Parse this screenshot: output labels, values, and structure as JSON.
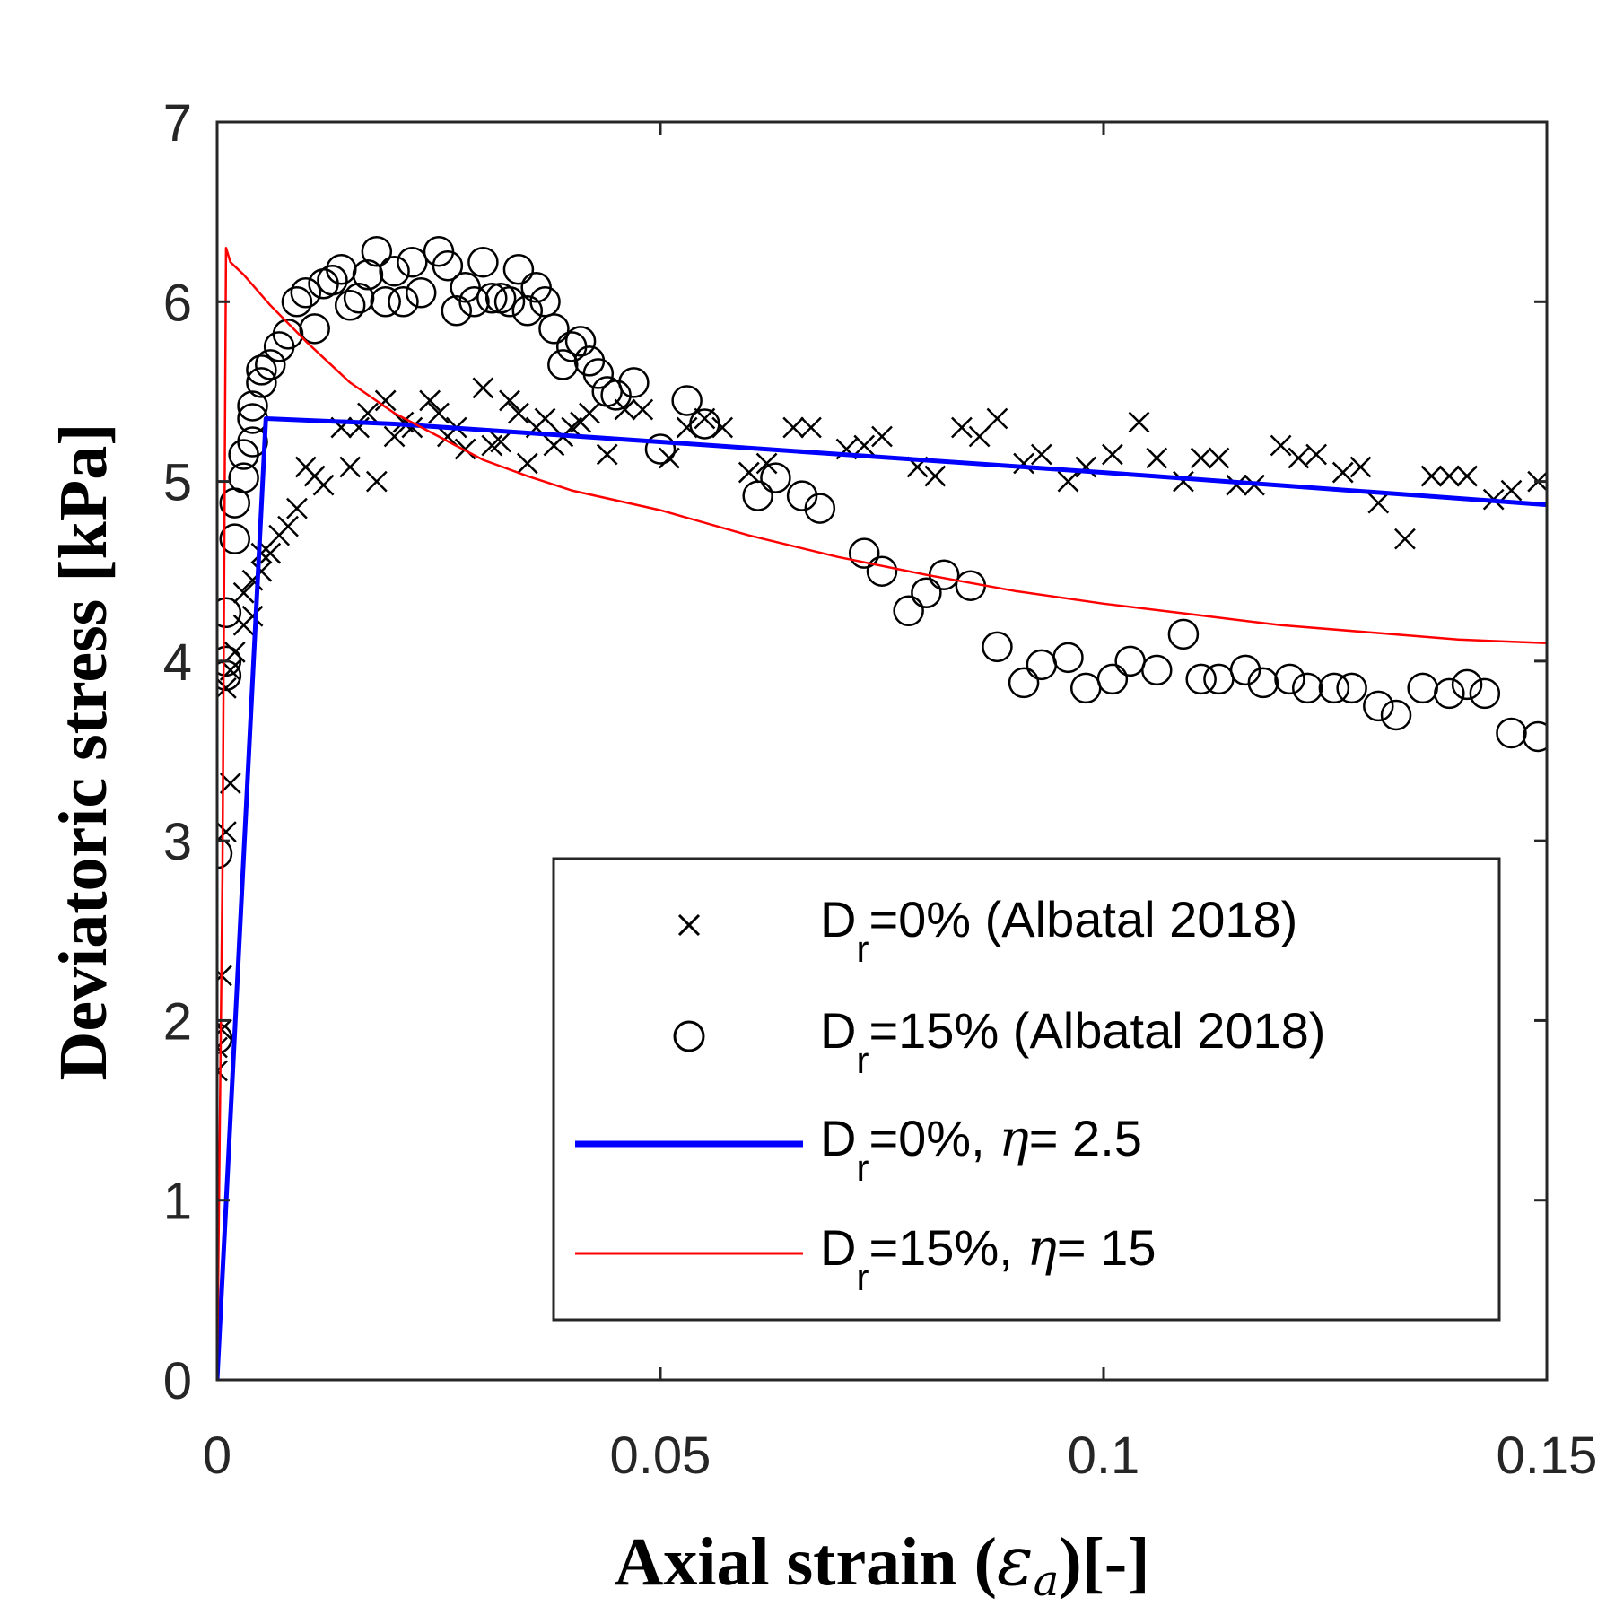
{
  "chart_data": {
    "type": "scatter",
    "xlabel_prefix": "Axial strain (",
    "xlabel_math": "ε",
    "xlabel_sub": "a",
    "xlabel_suffix": ")[-]",
    "ylabel": "Deviatoric stress [kPa]",
    "xlim": [
      0,
      0.15
    ],
    "ylim": [
      0,
      7
    ],
    "xticks": [
      {
        "value": 0,
        "label": "0"
      },
      {
        "value": 0.05,
        "label": "0.05"
      },
      {
        "value": 0.1,
        "label": "0.1"
      },
      {
        "value": 0.15,
        "label": "0.15"
      }
    ],
    "yticks": [
      {
        "value": 0,
        "label": "0"
      },
      {
        "value": 1,
        "label": "1"
      },
      {
        "value": 2,
        "label": "2"
      },
      {
        "value": 3,
        "label": "3"
      },
      {
        "value": 4,
        "label": "4"
      },
      {
        "value": 5,
        "label": "5"
      },
      {
        "value": 6,
        "label": "6"
      },
      {
        "value": 7,
        "label": "7"
      }
    ],
    "grid": false,
    "legend_position": "lower-right",
    "series": [
      {
        "legend": {
          "main": "D",
          "sub": "r",
          "rest": "=0% (Albatal 2018)"
        },
        "kind": "scatter",
        "marker": "x",
        "color": "#000000",
        "points": [
          [
            0.0,
            1.72
          ],
          [
            0.0,
            1.85
          ],
          [
            0.0005,
            1.95
          ],
          [
            0.0005,
            2.25
          ],
          [
            0.001,
            3.05
          ],
          [
            0.0015,
            3.32
          ],
          [
            0.001,
            3.85
          ],
          [
            0.0015,
            3.95
          ],
          [
            0.002,
            4.05
          ],
          [
            0.003,
            4.2
          ],
          [
            0.003,
            4.38
          ],
          [
            0.004,
            4.45
          ],
          [
            0.004,
            4.25
          ],
          [
            0.005,
            4.5
          ],
          [
            0.005,
            4.6
          ],
          [
            0.006,
            4.6
          ],
          [
            0.007,
            4.7
          ],
          [
            0.008,
            4.75
          ],
          [
            0.009,
            4.85
          ],
          [
            0.01,
            5.08
          ],
          [
            0.011,
            5.03
          ],
          [
            0.012,
            4.98
          ],
          [
            0.014,
            5.3
          ],
          [
            0.015,
            5.08
          ],
          [
            0.016,
            5.3
          ],
          [
            0.017,
            5.38
          ],
          [
            0.018,
            5.0
          ],
          [
            0.019,
            5.45
          ],
          [
            0.02,
            5.25
          ],
          [
            0.021,
            5.33
          ],
          [
            0.022,
            5.3
          ],
          [
            0.024,
            5.45
          ],
          [
            0.025,
            5.38
          ],
          [
            0.026,
            5.25
          ],
          [
            0.027,
            5.3
          ],
          [
            0.028,
            5.18
          ],
          [
            0.03,
            5.52
          ],
          [
            0.031,
            5.2
          ],
          [
            0.032,
            5.22
          ],
          [
            0.033,
            5.45
          ],
          [
            0.034,
            5.38
          ],
          [
            0.035,
            5.1
          ],
          [
            0.036,
            5.3
          ],
          [
            0.037,
            5.35
          ],
          [
            0.038,
            5.2
          ],
          [
            0.039,
            5.25
          ],
          [
            0.04,
            5.3
          ],
          [
            0.041,
            5.33
          ],
          [
            0.042,
            5.38
          ],
          [
            0.044,
            5.15
          ],
          [
            0.046,
            5.4
          ],
          [
            0.048,
            5.4
          ],
          [
            0.051,
            5.13
          ],
          [
            0.053,
            5.3
          ],
          [
            0.055,
            5.35
          ],
          [
            0.057,
            5.3
          ],
          [
            0.06,
            5.05
          ],
          [
            0.062,
            5.1
          ],
          [
            0.065,
            5.3
          ],
          [
            0.067,
            5.3
          ],
          [
            0.071,
            5.18
          ],
          [
            0.073,
            5.2
          ],
          [
            0.075,
            5.25
          ],
          [
            0.079,
            5.08
          ],
          [
            0.081,
            5.03
          ],
          [
            0.084,
            5.3
          ],
          [
            0.086,
            5.25
          ],
          [
            0.088,
            5.35
          ],
          [
            0.091,
            5.1
          ],
          [
            0.093,
            5.15
          ],
          [
            0.096,
            5.0
          ],
          [
            0.098,
            5.08
          ],
          [
            0.101,
            5.15
          ],
          [
            0.104,
            5.33
          ],
          [
            0.106,
            5.13
          ],
          [
            0.109,
            5.0
          ],
          [
            0.111,
            5.13
          ],
          [
            0.113,
            5.13
          ],
          [
            0.115,
            4.98
          ],
          [
            0.117,
            4.98
          ],
          [
            0.12,
            5.2
          ],
          [
            0.122,
            5.13
          ],
          [
            0.124,
            5.15
          ],
          [
            0.127,
            5.05
          ],
          [
            0.129,
            5.08
          ],
          [
            0.131,
            4.88
          ],
          [
            0.134,
            4.68
          ],
          [
            0.137,
            5.03
          ],
          [
            0.139,
            5.03
          ],
          [
            0.141,
            5.03
          ],
          [
            0.144,
            4.9
          ],
          [
            0.146,
            4.95
          ],
          [
            0.149,
            5.0
          ]
        ]
      },
      {
        "legend": {
          "main": "D",
          "sub": "r",
          "rest": "=15% (Albatal 2018)"
        },
        "kind": "scatter",
        "marker": "o",
        "color": "#000000",
        "points": [
          [
            0.0,
            1.9
          ],
          [
            0.0,
            2.93
          ],
          [
            0.001,
            3.92
          ],
          [
            0.001,
            4.0
          ],
          [
            0.001,
            4.27
          ],
          [
            0.002,
            4.68
          ],
          [
            0.002,
            4.88
          ],
          [
            0.003,
            5.02
          ],
          [
            0.003,
            5.15
          ],
          [
            0.004,
            5.35
          ],
          [
            0.004,
            5.42
          ],
          [
            0.004,
            5.22
          ],
          [
            0.005,
            5.55
          ],
          [
            0.005,
            5.62
          ],
          [
            0.006,
            5.65
          ],
          [
            0.007,
            5.75
          ],
          [
            0.008,
            5.82
          ],
          [
            0.009,
            6.0
          ],
          [
            0.01,
            6.05
          ],
          [
            0.011,
            5.85
          ],
          [
            0.012,
            6.1
          ],
          [
            0.013,
            6.12
          ],
          [
            0.014,
            6.18
          ],
          [
            0.015,
            5.98
          ],
          [
            0.016,
            6.02
          ],
          [
            0.017,
            6.15
          ],
          [
            0.018,
            6.28
          ],
          [
            0.019,
            6.0
          ],
          [
            0.02,
            6.17
          ],
          [
            0.021,
            6.0
          ],
          [
            0.022,
            6.22
          ],
          [
            0.023,
            6.05
          ],
          [
            0.025,
            6.28
          ],
          [
            0.026,
            6.2
          ],
          [
            0.027,
            5.95
          ],
          [
            0.028,
            6.08
          ],
          [
            0.029,
            6.0
          ],
          [
            0.03,
            6.22
          ],
          [
            0.031,
            6.02
          ],
          [
            0.032,
            6.02
          ],
          [
            0.033,
            6.0
          ],
          [
            0.034,
            6.18
          ],
          [
            0.035,
            5.95
          ],
          [
            0.036,
            6.08
          ],
          [
            0.037,
            6.0
          ],
          [
            0.038,
            5.85
          ],
          [
            0.039,
            5.65
          ],
          [
            0.04,
            5.75
          ],
          [
            0.041,
            5.78
          ],
          [
            0.042,
            5.67
          ],
          [
            0.043,
            5.6
          ],
          [
            0.044,
            5.5
          ],
          [
            0.045,
            5.48
          ],
          [
            0.047,
            5.55
          ],
          [
            0.05,
            5.18
          ],
          [
            0.053,
            5.45
          ],
          [
            0.055,
            5.32
          ],
          [
            0.061,
            4.92
          ],
          [
            0.063,
            5.02
          ],
          [
            0.066,
            4.92
          ],
          [
            0.068,
            4.85
          ],
          [
            0.073,
            4.6
          ],
          [
            0.075,
            4.5
          ],
          [
            0.078,
            4.28
          ],
          [
            0.08,
            4.38
          ],
          [
            0.082,
            4.48
          ],
          [
            0.085,
            4.42
          ],
          [
            0.088,
            4.08
          ],
          [
            0.091,
            3.88
          ],
          [
            0.093,
            3.98
          ],
          [
            0.096,
            4.02
          ],
          [
            0.098,
            3.85
          ],
          [
            0.101,
            3.9
          ],
          [
            0.103,
            4.0
          ],
          [
            0.106,
            3.95
          ],
          [
            0.109,
            4.15
          ],
          [
            0.111,
            3.9
          ],
          [
            0.113,
            3.9
          ],
          [
            0.116,
            3.95
          ],
          [
            0.118,
            3.88
          ],
          [
            0.121,
            3.9
          ],
          [
            0.123,
            3.85
          ],
          [
            0.126,
            3.85
          ],
          [
            0.128,
            3.85
          ],
          [
            0.131,
            3.75
          ],
          [
            0.133,
            3.7
          ],
          [
            0.136,
            3.85
          ],
          [
            0.139,
            3.82
          ],
          [
            0.141,
            3.87
          ],
          [
            0.143,
            3.82
          ],
          [
            0.146,
            3.6
          ],
          [
            0.149,
            3.58
          ]
        ]
      },
      {
        "legend": {
          "main": "D",
          "sub": "r",
          "rest": "=0%, ",
          "math": "η",
          "tail": "= 2.5"
        },
        "kind": "line",
        "color": "#0000ff",
        "width": 5,
        "points": [
          [
            0.0,
            0.0
          ],
          [
            0.0055,
            5.35
          ],
          [
            0.02,
            5.32
          ],
          [
            0.05,
            5.22
          ],
          [
            0.1,
            5.05
          ],
          [
            0.15,
            4.87
          ]
        ]
      },
      {
        "legend": {
          "main": "D",
          "sub": "r",
          "rest": "=15%, ",
          "math": "η",
          "tail": "= 15"
        },
        "kind": "line",
        "color": "#ff0000",
        "width": 2.5,
        "points": [
          [
            0.0,
            0.0
          ],
          [
            0.0006,
            2.8
          ],
          [
            0.001,
            6.3
          ],
          [
            0.0015,
            6.22
          ],
          [
            0.003,
            6.15
          ],
          [
            0.006,
            5.98
          ],
          [
            0.01,
            5.78
          ],
          [
            0.015,
            5.55
          ],
          [
            0.02,
            5.38
          ],
          [
            0.025,
            5.25
          ],
          [
            0.03,
            5.12
          ],
          [
            0.035,
            5.03
          ],
          [
            0.04,
            4.95
          ],
          [
            0.05,
            4.84
          ],
          [
            0.06,
            4.7
          ],
          [
            0.07,
            4.58
          ],
          [
            0.08,
            4.48
          ],
          [
            0.09,
            4.39
          ],
          [
            0.1,
            4.32
          ],
          [
            0.11,
            4.26
          ],
          [
            0.12,
            4.2
          ],
          [
            0.13,
            4.16
          ],
          [
            0.14,
            4.12
          ],
          [
            0.15,
            4.1
          ]
        ]
      }
    ]
  }
}
